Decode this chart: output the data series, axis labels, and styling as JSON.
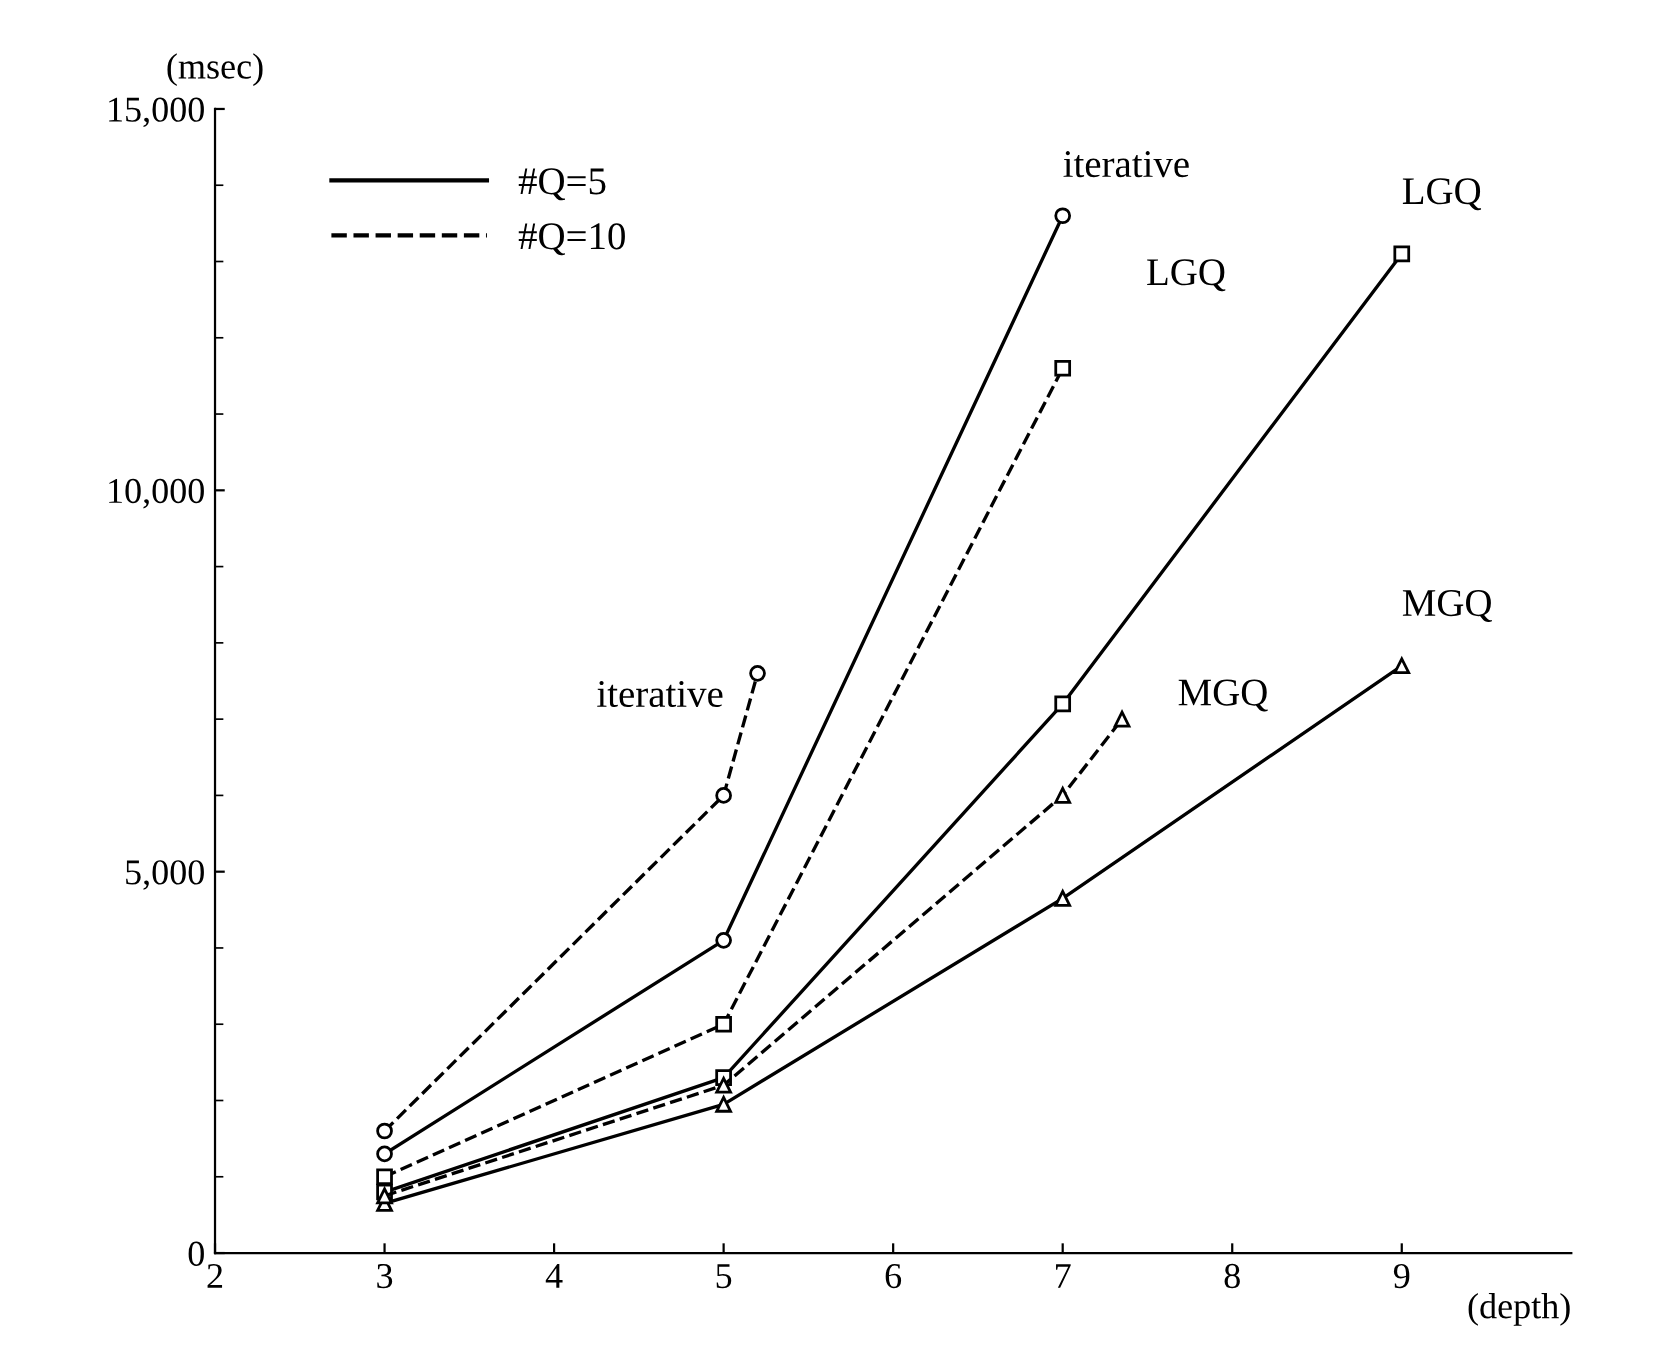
{
  "chart_data": {
    "type": "line",
    "xlabel": "(depth)",
    "ylabel": "(msec)",
    "xlim": [
      2,
      10
    ],
    "xticks": [
      2,
      3,
      4,
      5,
      6,
      7,
      8,
      9
    ],
    "ylim": [
      0,
      15000
    ],
    "yticks": [
      {
        "value": 0,
        "label": "0"
      },
      {
        "value": 5000,
        "label": "5,000"
      },
      {
        "value": 10000,
        "label": "10,000"
      },
      {
        "value": 15000,
        "label": "15,000"
      }
    ],
    "grid": false,
    "legend": "top left",
    "series": [
      {
        "name": "#Q=5",
        "color": "#000000",
        "line_style": "solid",
        "marker": "circle",
        "x": [
          3,
          5,
          7
        ],
        "values": [
          1300,
          4100,
          13600
        ]
      },
      {
        "color": "#000000",
        "line_style": "solid",
        "marker": "square",
        "x": [
          3,
          5,
          7,
          9
        ],
        "values": [
          800,
          2300,
          7200,
          13100
        ]
      },
      {
        "color": "#000000",
        "line_style": "solid",
        "marker": "triangle",
        "x": [
          3,
          5,
          7,
          9
        ],
        "values": [
          650,
          1950,
          4650,
          7700
        ]
      },
      {
        "name": "#Q=10",
        "color": "#000000",
        "line_style": "dashed",
        "marker": "circle",
        "x": [
          3,
          5,
          5.2
        ],
        "values": [
          1600,
          6000,
          7600
        ]
      },
      {
        "color": "#000000",
        "line_style": "dashed",
        "marker": "square",
        "x": [
          3,
          5,
          7
        ],
        "values": [
          1000,
          3000,
          11600
        ]
      },
      {
        "color": "#000000",
        "line_style": "dashed",
        "marker": "triangle",
        "x": [
          3,
          5,
          7,
          7.35
        ],
        "values": [
          750,
          2200,
          6000,
          7000
        ]
      }
    ],
    "annotations": [
      {
        "text": "iterative",
        "x": 7,
        "y": 13600
      },
      {
        "text": "LGQ",
        "x": 7,
        "y": 11600
      },
      {
        "text": "LGQ",
        "x": 9,
        "y": 13100
      },
      {
        "text": "iterative",
        "x": 5.2,
        "y": 7600
      },
      {
        "text": "MGQ",
        "x": 7.35,
        "y": 7000
      },
      {
        "text": "MGQ",
        "x": 9,
        "y": 7700
      }
    ]
  }
}
